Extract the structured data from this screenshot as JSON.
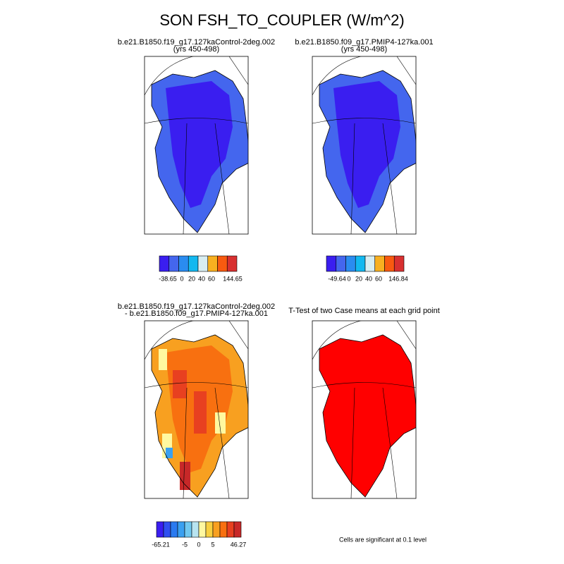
{
  "title": "SON FSH_TO_COUPLER (W/m^2)",
  "panels": [
    {
      "title": [
        "b.e21.B1850.f19_g17.127kaControl-2deg.002",
        "(yrs 450-498)"
      ],
      "fill": "#4466ee",
      "inner": "#3a1ef0",
      "colorbar": {
        "colors": [
          "#3a1ef0",
          "#4466ee",
          "#2a8cf0",
          "#12b8f0",
          "#d8eef2",
          "#f8b020",
          "#f85a10",
          "#d83030"
        ],
        "labels": [
          "-38.65",
          "0",
          "20",
          "40",
          "60",
          "144.65"
        ]
      }
    },
    {
      "title": [
        "b.e21.B1850.f09_g17.PMIP4-127ka.001",
        "(yrs 450-498)"
      ],
      "fill": "#4466ee",
      "inner": "#3a1ef0",
      "colorbar": {
        "colors": [
          "#3a1ef0",
          "#4466ee",
          "#2a8cf0",
          "#12b8f0",
          "#d8eef2",
          "#f8b020",
          "#f85a10",
          "#d83030"
        ],
        "labels": [
          "-49.64",
          "0",
          "20",
          "40",
          "60",
          "146.84"
        ]
      }
    },
    {
      "title": [
        "b.e21.B1850.f19_g17.127kaControl-2deg.002",
        "- b.e21.B1850.f09_g17.PMIP4-127ka.001"
      ],
      "fill": "#f8a020",
      "inner": "#f87010",
      "colorbar": {
        "colors": [
          "#3a1ef0",
          "#3050f0",
          "#2a7af0",
          "#3aa0f0",
          "#70c8f0",
          "#b8e4f0",
          "#fff8a0",
          "#f8d040",
          "#f8a020",
          "#f87010",
          "#e84020",
          "#c82828"
        ],
        "labels": [
          "-65.21",
          "-5",
          "0",
          "5",
          "46.27"
        ]
      }
    },
    {
      "title": [
        "T-Test of two Case means at each grid point"
      ],
      "fill": "#ff0000",
      "inner": "#ff0000",
      "note": "Cells are significant at 0.1 level"
    }
  ]
}
